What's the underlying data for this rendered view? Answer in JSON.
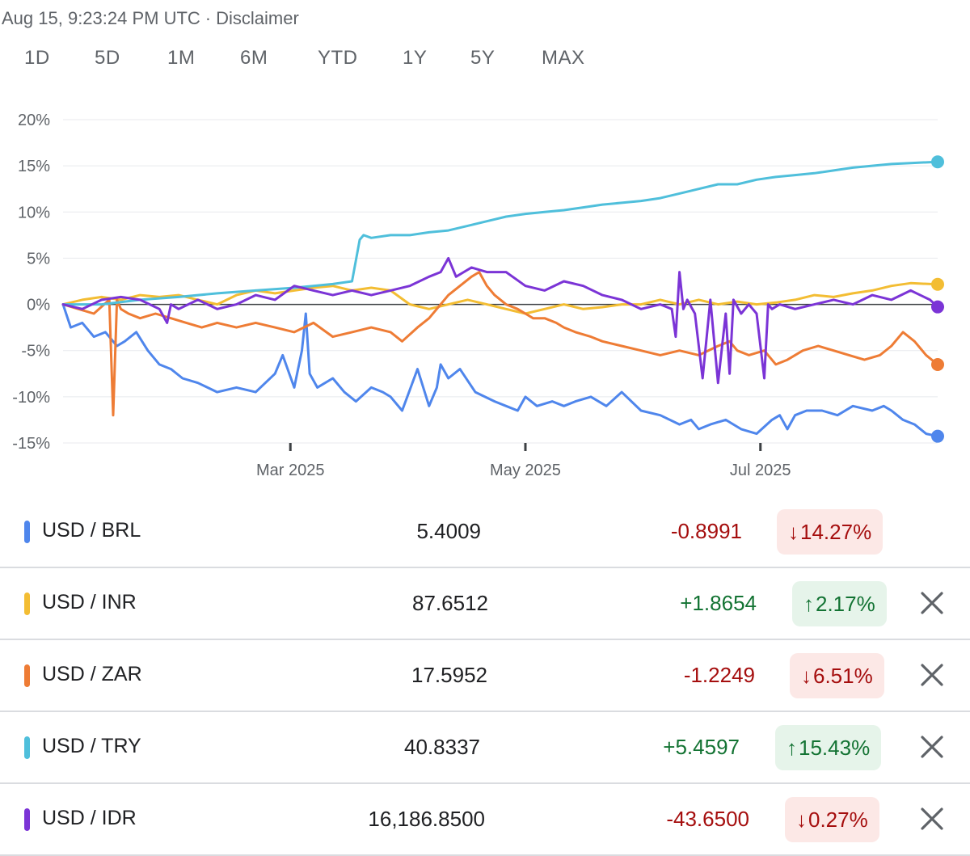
{
  "header": {
    "timestamp": "Aug 15, 9:23:24 PM UTC",
    "separator": "·",
    "disclaimer": "Disclaimer"
  },
  "tabs": [
    {
      "label": "1D",
      "active": false
    },
    {
      "label": "5D",
      "active": false
    },
    {
      "label": "1M",
      "active": false
    },
    {
      "label": "6M",
      "active": false
    },
    {
      "label": "YTD",
      "active": true
    },
    {
      "label": "1Y",
      "active": false
    },
    {
      "label": "5Y",
      "active": false
    },
    {
      "label": "MAX",
      "active": false
    }
  ],
  "chart_data": {
    "type": "line",
    "title": "",
    "xlabel": "",
    "ylabel": "",
    "ylim": [
      -15,
      20
    ],
    "yticks": [
      20,
      15,
      10,
      5,
      0,
      -5,
      -10,
      -15
    ],
    "ytick_labels": [
      "20%",
      "15%",
      "10%",
      "5%",
      "0%",
      "-5%",
      "-10%",
      "-15%"
    ],
    "xlim": [
      0,
      227
    ],
    "xticks": [
      {
        "day": 59,
        "label": "Mar 2025"
      },
      {
        "day": 120,
        "label": "May 2025"
      },
      {
        "day": 181,
        "label": "Jul 2025"
      }
    ],
    "grid": true,
    "series": [
      {
        "name": "USD / BRL",
        "color": "#4f86ec",
        "x": [
          0,
          2,
          5,
          8,
          11,
          14,
          16,
          19,
          22,
          25,
          28,
          31,
          35,
          40,
          45,
          50,
          55,
          57,
          60,
          62,
          63,
          64,
          66,
          70,
          73,
          76,
          80,
          83,
          85,
          88,
          92,
          95,
          97,
          98,
          100,
          103,
          107,
          112,
          115,
          118,
          120,
          123,
          127,
          130,
          133,
          137,
          141,
          145,
          150,
          155,
          160,
          163,
          165,
          168,
          172,
          176,
          180,
          184,
          186,
          188,
          190,
          193,
          197,
          201,
          205,
          210,
          213,
          215,
          218,
          221,
          224,
          227
        ],
        "values": [
          0.0,
          -2.5,
          -2.0,
          -3.5,
          -3.0,
          -4.5,
          -4.0,
          -3.0,
          -5.0,
          -6.5,
          -7.0,
          -8.0,
          -8.5,
          -9.5,
          -9.0,
          -9.5,
          -7.5,
          -5.5,
          -9.0,
          -5.0,
          -1.0,
          -7.5,
          -9.0,
          -8.0,
          -9.5,
          -10.5,
          -9.0,
          -9.5,
          -10.0,
          -11.5,
          -7.0,
          -11.0,
          -9.0,
          -6.5,
          -8.0,
          -7.0,
          -9.5,
          -10.5,
          -11.0,
          -11.5,
          -10.0,
          -11.0,
          -10.5,
          -11.0,
          -10.5,
          -10.0,
          -11.0,
          -9.5,
          -11.5,
          -12.0,
          -13.0,
          -12.5,
          -13.5,
          -13.0,
          -12.5,
          -13.5,
          -14.0,
          -12.5,
          -12.0,
          -13.5,
          -12.0,
          -11.5,
          -11.5,
          -12.0,
          -11.0,
          -11.5,
          -11.0,
          -11.5,
          -12.5,
          -13.0,
          -14.0,
          -14.27
        ]
      },
      {
        "name": "USD / INR",
        "color": "#f3bd33",
        "x": [
          0,
          5,
          10,
          15,
          20,
          25,
          30,
          35,
          40,
          45,
          50,
          55,
          60,
          65,
          70,
          75,
          80,
          85,
          90,
          95,
          100,
          105,
          110,
          115,
          120,
          125,
          130,
          135,
          140,
          145,
          150,
          155,
          160,
          165,
          170,
          175,
          180,
          185,
          190,
          195,
          200,
          205,
          210,
          215,
          220,
          227
        ],
        "values": [
          0.0,
          0.5,
          0.8,
          0.5,
          1.0,
          0.8,
          1.0,
          0.5,
          0.0,
          1.0,
          1.5,
          1.2,
          1.5,
          1.8,
          2.0,
          1.5,
          1.8,
          1.5,
          0.0,
          -0.5,
          0.0,
          0.5,
          0.0,
          -0.5,
          -1.0,
          -0.5,
          0.0,
          -0.5,
          -0.3,
          0.0,
          0.0,
          0.5,
          0.0,
          0.5,
          0.0,
          0.3,
          0.0,
          0.2,
          0.5,
          1.0,
          0.8,
          1.2,
          1.5,
          2.0,
          2.3,
          2.17
        ]
      },
      {
        "name": "USD / ZAR",
        "color": "#ee7c35",
        "x": [
          0,
          4,
          8,
          12,
          13,
          14,
          15,
          17,
          20,
          24,
          28,
          32,
          36,
          40,
          45,
          50,
          55,
          60,
          65,
          70,
          75,
          80,
          85,
          88,
          92,
          95,
          98,
          100,
          103,
          106,
          108,
          110,
          112,
          115,
          118,
          120,
          122,
          125,
          128,
          130,
          133,
          137,
          140,
          145,
          150,
          155,
          160,
          165,
          170,
          173,
          175,
          178,
          182,
          185,
          188,
          192,
          196,
          200,
          204,
          208,
          212,
          215,
          218,
          221,
          224,
          227
        ],
        "values": [
          0.0,
          -0.5,
          -1.0,
          0.5,
          -12.0,
          0.5,
          -0.5,
          -1.0,
          -1.5,
          -1.0,
          -1.5,
          -2.0,
          -2.5,
          -2.0,
          -2.5,
          -2.0,
          -2.5,
          -3.0,
          -2.0,
          -3.5,
          -3.0,
          -2.5,
          -3.0,
          -4.0,
          -2.5,
          -1.5,
          0.0,
          1.0,
          2.0,
          3.0,
          3.5,
          2.0,
          1.0,
          0.0,
          -0.5,
          -1.0,
          -1.5,
          -1.5,
          -2.0,
          -2.5,
          -3.0,
          -3.5,
          -4.0,
          -4.5,
          -5.0,
          -5.5,
          -5.0,
          -5.5,
          -4.5,
          -4.0,
          -5.0,
          -5.5,
          -5.0,
          -6.5,
          -6.0,
          -5.0,
          -4.5,
          -5.0,
          -5.5,
          -6.0,
          -5.5,
          -4.5,
          -3.0,
          -4.0,
          -5.5,
          -6.51
        ]
      },
      {
        "name": "USD / TRY",
        "color": "#4fbfdb",
        "x": [
          0,
          10,
          20,
          30,
          40,
          50,
          60,
          70,
          75,
          77,
          78,
          80,
          85,
          90,
          95,
          100,
          105,
          110,
          115,
          120,
          125,
          130,
          135,
          140,
          145,
          150,
          155,
          160,
          165,
          170,
          175,
          180,
          185,
          190,
          195,
          200,
          205,
          210,
          215,
          220,
          227
        ],
        "values": [
          0.0,
          0.0,
          0.5,
          0.8,
          1.2,
          1.5,
          1.8,
          2.2,
          2.5,
          7.0,
          7.5,
          7.2,
          7.5,
          7.5,
          7.8,
          8.0,
          8.5,
          9.0,
          9.5,
          9.8,
          10.0,
          10.2,
          10.5,
          10.8,
          11.0,
          11.2,
          11.5,
          12.0,
          12.5,
          13.0,
          13.0,
          13.5,
          13.8,
          14.0,
          14.2,
          14.5,
          14.8,
          15.0,
          15.2,
          15.3,
          15.43
        ]
      },
      {
        "name": "USD / IDR",
        "color": "#7b34d6",
        "x": [
          0,
          5,
          10,
          15,
          20,
          25,
          27,
          28,
          30,
          35,
          40,
          45,
          50,
          55,
          60,
          65,
          70,
          75,
          80,
          85,
          90,
          95,
          98,
          100,
          102,
          104,
          106,
          110,
          115,
          120,
          125,
          130,
          135,
          140,
          145,
          150,
          155,
          158,
          159,
          160,
          161,
          162,
          164,
          166,
          168,
          170,
          172,
          173,
          174,
          176,
          178,
          180,
          182,
          183,
          184,
          186,
          190,
          195,
          200,
          205,
          210,
          215,
          220,
          225,
          227
        ],
        "values": [
          0.0,
          -0.5,
          0.5,
          0.8,
          0.5,
          -0.5,
          -2.0,
          0.0,
          -0.5,
          0.5,
          -0.5,
          0.0,
          1.0,
          0.5,
          2.0,
          1.5,
          1.0,
          1.5,
          1.0,
          1.5,
          2.0,
          3.0,
          3.5,
          5.0,
          3.0,
          3.5,
          4.0,
          3.5,
          3.5,
          2.0,
          1.5,
          2.5,
          2.0,
          1.0,
          0.5,
          -0.5,
          0.0,
          -0.5,
          -3.5,
          3.5,
          -0.5,
          0.5,
          -1.0,
          -8.0,
          0.5,
          -8.5,
          -1.0,
          -7.5,
          0.5,
          -1.0,
          0.0,
          -1.0,
          -8.0,
          0.0,
          -0.5,
          0.0,
          -0.5,
          0.0,
          0.5,
          0.0,
          1.0,
          0.5,
          1.5,
          0.5,
          -0.27
        ]
      }
    ]
  },
  "rows": [
    {
      "pair": "USD / BRL",
      "color": "#4f86ec",
      "price": "5.4009",
      "change": "-0.8991",
      "dir": "down",
      "arrow": "↓",
      "pct": "14.27%",
      "removable": false
    },
    {
      "pair": "USD / INR",
      "color": "#f3bd33",
      "price": "87.6512",
      "change": "+1.8654",
      "dir": "up",
      "arrow": "↑",
      "pct": "2.17%",
      "removable": true
    },
    {
      "pair": "USD / ZAR",
      "color": "#ee7c35",
      "price": "17.5952",
      "change": "-1.2249",
      "dir": "down",
      "arrow": "↓",
      "pct": "6.51%",
      "removable": true
    },
    {
      "pair": "USD / TRY",
      "color": "#4fbfdb",
      "price": "40.8337",
      "change": "+5.4597",
      "dir": "up",
      "arrow": "↑",
      "pct": "15.43%",
      "removable": true
    },
    {
      "pair": "USD / IDR",
      "color": "#7b34d6",
      "price": "16,186.8500",
      "change": "-43.6500",
      "dir": "down",
      "arrow": "↓",
      "pct": "0.27%",
      "removable": true
    }
  ],
  "icons": {
    "remove": "close-icon"
  }
}
